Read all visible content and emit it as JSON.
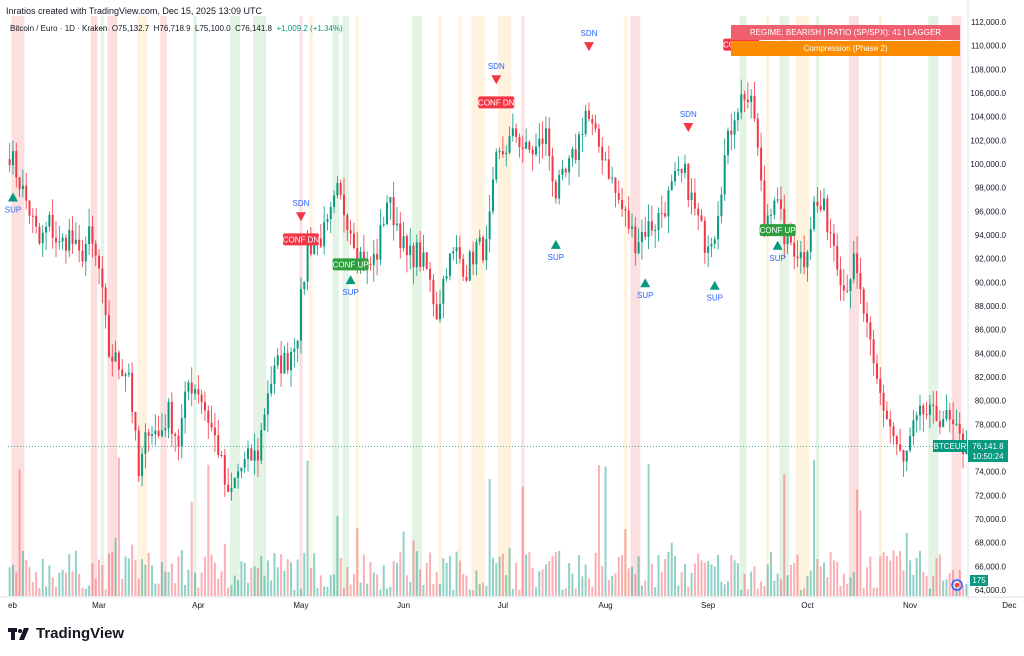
{
  "header": {
    "credit": "Inratios created with TradingView.com, Dec 15, 2025 13:09 UTC"
  },
  "legend": {
    "symbol": "Bitcoin / Euro · 1D · Kraken",
    "open": "O75,132.7",
    "high": "H76,718.9",
    "low": "L75,100.0",
    "close": "C76,141.8",
    "change": "+1,009.2 (+1.34%)"
  },
  "regime_label": "REGIME: BEARISH   |   RATIO (SP/SPX): 41  |  LAGGER",
  "phase_label": "Compression (Phase 2)",
  "price_tag": {
    "symbol": "BTCEUR",
    "value": "76,141.8",
    "countdown": "10:50:24"
  },
  "volume_tag": "175",
  "footer": {
    "brand": "TradingView"
  },
  "colors": {
    "up": "#089981",
    "down": "#f23645",
    "regime": "#ef5f6e",
    "phase": "#fb8c00"
  },
  "chart_data": {
    "type": "candlestick",
    "x_tick_labels": [
      "eb",
      "Mar",
      "Apr",
      "May",
      "Jun",
      "Jul",
      "Aug",
      "Sep",
      "Oct",
      "Nov",
      "Dec"
    ],
    "y_tick_labels": [
      "112,000.0",
      "110,000.0",
      "108,000.0",
      "106,000.0",
      "104,000.0",
      "102,000.0",
      "100,000.0",
      "98,000.0",
      "96,000.0",
      "94,000.0",
      "92,000.0",
      "90,000.0",
      "88,000.0",
      "86,000.0",
      "84,000.0",
      "82,000.0",
      "80,000.0",
      "78,000.0",
      "76,000.0",
      "74,000.0",
      "72,000.0",
      "70,000.0",
      "68,000.0",
      "66,000.0",
      "64,000.0"
    ],
    "ylim": [
      63500,
      112500
    ],
    "last_close": 76141.8,
    "price_path": [
      [
        0,
        101000
      ],
      [
        3,
        98500
      ],
      [
        6,
        96000
      ],
      [
        9,
        93200
      ],
      [
        12,
        95000
      ],
      [
        15,
        93000
      ],
      [
        18,
        94000
      ],
      [
        21,
        92000
      ],
      [
        24,
        93800
      ],
      [
        27,
        91000
      ],
      [
        30,
        84000
      ],
      [
        33,
        83000
      ],
      [
        36,
        82500
      ],
      [
        39,
        73500
      ],
      [
        42,
        78000
      ],
      [
        45,
        77000
      ],
      [
        48,
        79000
      ],
      [
        51,
        76500
      ],
      [
        54,
        81500
      ],
      [
        57,
        81000
      ],
      [
        60,
        78500
      ],
      [
        63,
        76000
      ],
      [
        66,
        71500
      ],
      [
        69,
        74000
      ],
      [
        72,
        75000
      ],
      [
        75,
        75500
      ],
      [
        78,
        81000
      ],
      [
        81,
        83000
      ],
      [
        84,
        83500
      ],
      [
        87,
        86000
      ],
      [
        90,
        93000
      ],
      [
        93,
        93500
      ],
      [
        96,
        94500
      ],
      [
        99,
        97500
      ],
      [
        102,
        95500
      ],
      [
        105,
        93000
      ],
      [
        108,
        91000
      ],
      [
        111,
        92500
      ],
      [
        114,
        97000
      ],
      [
        117,
        95000
      ],
      [
        120,
        92000
      ],
      [
        123,
        92500
      ],
      [
        126,
        91000
      ],
      [
        129,
        87500
      ],
      [
        132,
        91500
      ],
      [
        135,
        92500
      ],
      [
        138,
        91000
      ],
      [
        141,
        93000
      ],
      [
        144,
        92800
      ],
      [
        147,
        100000
      ],
      [
        150,
        101500
      ],
      [
        153,
        102500
      ],
      [
        156,
        101000
      ],
      [
        159,
        101200
      ],
      [
        162,
        102500
      ],
      [
        165,
        97500
      ],
      [
        168,
        99000
      ],
      [
        171,
        101000
      ],
      [
        174,
        104500
      ],
      [
        177,
        102000
      ],
      [
        180,
        100500
      ],
      [
        183,
        97500
      ],
      [
        186,
        95500
      ],
      [
        189,
        93500
      ],
      [
        192,
        94500
      ],
      [
        195,
        95000
      ],
      [
        198,
        96500
      ],
      [
        201,
        98500
      ],
      [
        204,
        99000
      ],
      [
        207,
        96000
      ],
      [
        210,
        93500
      ],
      [
        213,
        94500
      ],
      [
        216,
        100500
      ],
      [
        219,
        104500
      ],
      [
        222,
        106000
      ],
      [
        225,
        104000
      ],
      [
        228,
        95000
      ],
      [
        231,
        97500
      ],
      [
        234,
        94000
      ],
      [
        237,
        93000
      ],
      [
        240,
        92000
      ],
      [
        243,
        96500
      ],
      [
        246,
        96000
      ],
      [
        249,
        93500
      ],
      [
        252,
        89500
      ],
      [
        255,
        91500
      ],
      [
        258,
        87500
      ],
      [
        261,
        82500
      ],
      [
        264,
        79500
      ],
      [
        267,
        77000
      ],
      [
        270,
        74500
      ],
      [
        273,
        77500
      ],
      [
        276,
        79000
      ],
      [
        279,
        78500
      ],
      [
        282,
        78800
      ],
      [
        285,
        77500
      ],
      [
        288,
        76141.8
      ]
    ],
    "annotations": [
      {
        "label": "SUP",
        "kind": "support",
        "day": 1
      },
      {
        "label": "SDN",
        "kind": "supply",
        "day": 88
      },
      {
        "label": "CONF DN",
        "kind": "confirm-down",
        "day": 88
      },
      {
        "label": "CONF UP",
        "kind": "confirm-up",
        "day": 103
      },
      {
        "label": "SUP",
        "kind": "support",
        "day": 103
      },
      {
        "label": "SDN",
        "kind": "supply",
        "day": 147
      },
      {
        "label": "CONF DN",
        "kind": "confirm-down",
        "day": 147
      },
      {
        "label": "SDN",
        "kind": "supply",
        "day": 175
      },
      {
        "label": "SUP",
        "kind": "support",
        "day": 165
      },
      {
        "label": "SUP",
        "kind": "support",
        "day": 192
      },
      {
        "label": "SDN",
        "kind": "supply",
        "day": 205
      },
      {
        "label": "SUP",
        "kind": "support",
        "day": 213
      },
      {
        "label": "CONF DN",
        "kind": "confirm-down",
        "day": 221
      },
      {
        "label": "CONF UP",
        "kind": "confirm-up",
        "day": 232
      },
      {
        "label": "SUP",
        "kind": "support",
        "day": 232
      }
    ]
  }
}
